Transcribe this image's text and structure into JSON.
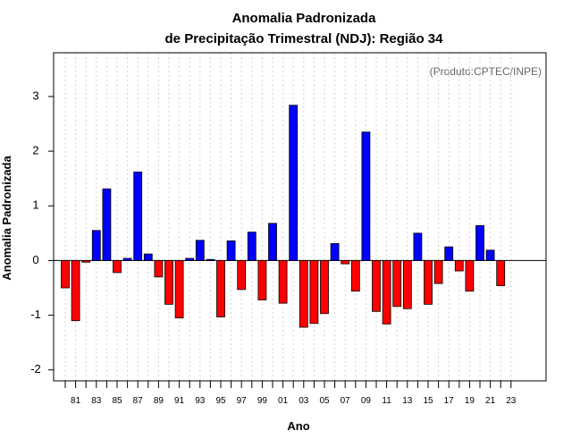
{
  "chart_data": {
    "type": "bar",
    "title": [
      "Anomalia Padronizada",
      "de Precipitação Trimestral (NDJ): Região 34"
    ],
    "xlabel": "Ano",
    "ylabel": "Anomalia Padronizada",
    "credit": "(Produto:CPTEC/INPE)",
    "ylim": [
      -2.2,
      3.8
    ],
    "yticks": [
      -2,
      -1,
      0,
      1,
      2,
      3
    ],
    "ytick_labels": [
      "-2",
      "-1",
      "0",
      "1",
      "2",
      "3"
    ],
    "grid": true,
    "categories": [
      "1980",
      "1981",
      "1982",
      "1983",
      "1984",
      "1985",
      "1986",
      "1987",
      "1988",
      "1989",
      "1990",
      "1991",
      "1992",
      "1993",
      "1994",
      "1995",
      "1996",
      "1997",
      "1998",
      "1999",
      "2000",
      "2001",
      "2002",
      "2003",
      "2004",
      "2005",
      "2006",
      "2007",
      "2008",
      "2009",
      "2010",
      "2011",
      "2012",
      "2013",
      "2014",
      "2015",
      "2016",
      "2017",
      "2018",
      "2019",
      "2020",
      "2021",
      "2022",
      "2023"
    ],
    "values": [
      -0.5,
      -1.1,
      -0.03,
      0.55,
      1.31,
      -0.22,
      0.04,
      1.62,
      0.12,
      -0.3,
      -0.8,
      -1.05,
      0.04,
      0.37,
      0.02,
      -1.03,
      0.36,
      -0.53,
      0.52,
      -0.72,
      0.68,
      -0.78,
      2.84,
      -1.22,
      -1.15,
      -0.97,
      0.31,
      -0.06,
      -0.56,
      2.35,
      -0.93,
      -1.16,
      -0.84,
      -0.88,
      0.5,
      -0.8,
      -0.42,
      0.25,
      -0.19,
      -0.56,
      0.64,
      0.19,
      -0.46,
      null
    ],
    "xtick_labels": [
      "81",
      "83",
      "85",
      "87",
      "89",
      "91",
      "93",
      "95",
      "97",
      "99",
      "01",
      "03",
      "05",
      "07",
      "09",
      "11",
      "13",
      "15",
      "17",
      "19",
      "21",
      "23"
    ],
    "colors": {
      "positive": "#0000ff",
      "negative": "#ff0000",
      "zero_line": "#000000",
      "grid": "#d3d3d3"
    }
  }
}
